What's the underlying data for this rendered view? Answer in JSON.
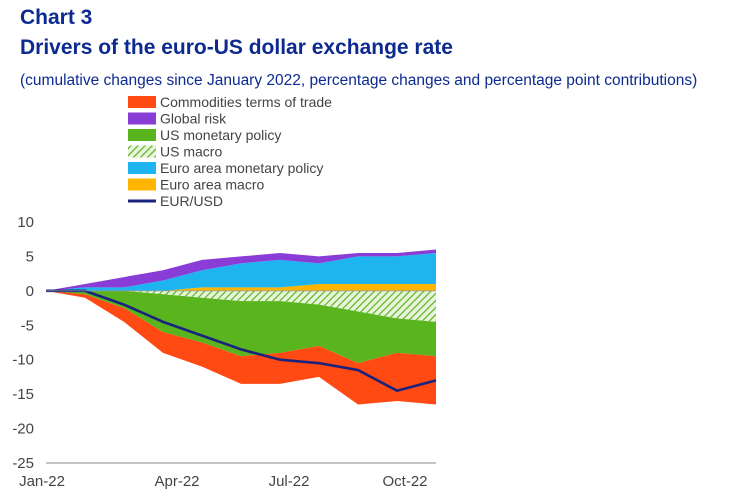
{
  "chart_number": "Chart 3",
  "title": "Drivers of the euro-US dollar exchange rate",
  "subtitle": "(cumulative changes since January 2022, percentage changes and percentage point contributions)",
  "chart_data": {
    "type": "area",
    "stacked": true,
    "x_ticks": [
      "Jan-22",
      "Apr-22",
      "Jul-22",
      "Oct-22"
    ],
    "ylim": [
      -25,
      10
    ],
    "y_ticks": [
      10,
      5,
      0,
      -5,
      -10,
      -15,
      -20,
      -25
    ],
    "grid": false,
    "legend_position": "top-left",
    "dates": [
      "Jan-22",
      "Feb-22",
      "Mar-22",
      "Apr-22",
      "May-22",
      "Jun-22",
      "Jul-22",
      "Aug-22",
      "Sep-22",
      "Oct-22",
      "Nov-22"
    ],
    "series": [
      {
        "name": "Commodities terms of trade",
        "kind": "area",
        "color": "#ff4a14",
        "values": [
          0,
          -0.5,
          -2.0,
          -3.0,
          -3.5,
          -4.0,
          -4.5,
          -4.5,
          -6.0,
          -7.0,
          -7.0
        ]
      },
      {
        "name": "Global risk",
        "kind": "area",
        "color": "#8a3dd6",
        "values": [
          0,
          0.5,
          1.5,
          1.5,
          1.5,
          1.0,
          1.0,
          1.0,
          0.5,
          0.5,
          0.5
        ]
      },
      {
        "name": "US monetary policy",
        "kind": "area",
        "color": "#5ab41e",
        "values": [
          0,
          -0.5,
          -2.5,
          -5.5,
          -6.5,
          -8.0,
          -7.5,
          -6.0,
          -7.5,
          -5.0,
          -5.0
        ]
      },
      {
        "name": "US macro",
        "kind": "hatched",
        "color": "#5ab41e",
        "values": [
          0,
          0,
          0,
          -0.5,
          -1.0,
          -1.5,
          -1.5,
          -2.0,
          -3.0,
          -4.0,
          -4.5
        ]
      },
      {
        "name": "Euro area monetary policy",
        "kind": "area",
        "color": "#1eb4f0",
        "values": [
          0,
          0.5,
          0.5,
          1.5,
          2.5,
          3.5,
          4.0,
          3.0,
          4.0,
          4.0,
          4.5
        ]
      },
      {
        "name": "Euro area macro",
        "kind": "area",
        "color": "#ffb400",
        "values": [
          0,
          0,
          0,
          0,
          0.5,
          0.5,
          0.5,
          1.0,
          1.0,
          1.0,
          1.0
        ]
      },
      {
        "name": "EUR/USD",
        "kind": "line",
        "color": "#1a237e",
        "values": [
          0,
          0,
          -2.0,
          -4.5,
          -6.5,
          -8.5,
          -10.0,
          -10.5,
          -11.5,
          -14.5,
          -13.0
        ]
      }
    ]
  }
}
